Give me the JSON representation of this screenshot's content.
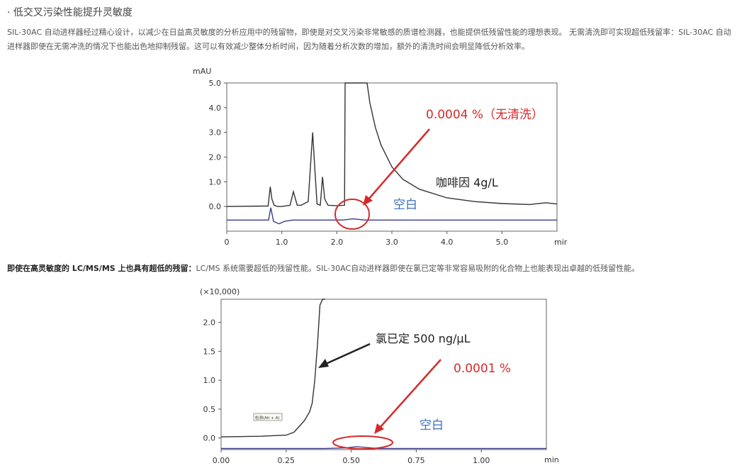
{
  "section": {
    "heading": "· 低交叉污染性能提升灵敏度",
    "paragraph1": "SIL-30AC 自动进样器经过精心设计，以减少在日益高灵敏度的分析应用中的残留物，即使是对交叉污染非常敏感的质谱检测器，也能提供低残留性能的理想表现。 无需清洗即可实现超低残留率：SIL-30AC 自动进样器即使在无需冲洗的情况下也能出色地抑制残留。这可以有效减少整体分析时间，因为随着分析次数的增加，额外的清洗时间会明显降低分析效率。",
    "paragraph2_bold": "即使在高灵敏度的 LC/MS/MS 上也具有超低的残留：",
    "paragraph2_rest": "LC/MS 系统需要超低的残留性能。SIL-30AC自动进样器即使在氯已定等非常容易吸附的化合物上也能表现出卓越的低残留性能。"
  },
  "chart_data": [
    {
      "type": "line",
      "ylabel": "mAU",
      "xlabel": "min",
      "xlim": [
        0,
        6.0
      ],
      "ylim": [
        -1.0,
        5.0
      ],
      "xticks": [
        "0",
        "1.0",
        "2.0",
        "3.0",
        "4.0",
        "5.0"
      ],
      "yticks": [
        "0.0",
        "1.0",
        "2.0",
        "3.0",
        "4.0",
        "5.0"
      ],
      "series": [
        {
          "name": "咖啡因 4g/L",
          "color": "#333333",
          "x": [
            0,
            0.75,
            0.79,
            0.82,
            0.86,
            0.92,
            1.0,
            1.15,
            1.21,
            1.28,
            1.35,
            1.48,
            1.56,
            1.6,
            1.64,
            1.7,
            1.74,
            1.78,
            1.84,
            2.0,
            2.14,
            2.15,
            2.18,
            2.55,
            2.6,
            2.7,
            2.8,
            3.0,
            3.2,
            3.5,
            4.0,
            4.5,
            5.0,
            5.5,
            5.8,
            6.0
          ],
          "y": [
            0.0,
            0.02,
            0.8,
            0.3,
            0.05,
            0.0,
            0.0,
            0.05,
            0.6,
            0.05,
            0.05,
            0.2,
            3.0,
            1.5,
            0.1,
            0.05,
            1.2,
            0.3,
            0.05,
            0.03,
            0.05,
            5.2,
            5.2,
            5.2,
            4.2,
            3.2,
            2.5,
            1.6,
            1.1,
            0.7,
            0.35,
            0.2,
            0.12,
            0.08,
            0.15,
            0.1
          ]
        },
        {
          "name": "空白",
          "color": "#3a3a8c",
          "x": [
            0,
            0.76,
            0.8,
            0.85,
            0.95,
            1.05,
            1.2,
            2.1,
            2.3,
            2.5,
            2.7,
            6.0
          ],
          "y": [
            -0.55,
            -0.55,
            -0.05,
            -0.6,
            -0.7,
            -0.6,
            -0.55,
            -0.55,
            -0.5,
            -0.55,
            -0.55,
            -0.55
          ]
        }
      ],
      "annotations": [
        "0.0004 %（无清洗）",
        "咖啡因 4g/L",
        "空白"
      ]
    },
    {
      "type": "line",
      "ylabel": "(×10,000)",
      "xlabel": "min",
      "xlim": [
        0,
        1.25
      ],
      "ylim": [
        -0.2,
        2.4
      ],
      "xticks": [
        "0.00",
        "0.25",
        "0.50",
        "0.75",
        "1.00"
      ],
      "yticks": [
        "0.0",
        "0.5",
        "1.0",
        "1.5",
        "2.0"
      ],
      "series": [
        {
          "name": "氯已定 500 ng/μL",
          "color": "#333333",
          "x": [
            0,
            0.15,
            0.25,
            0.28,
            0.3,
            0.32,
            0.34,
            0.35,
            0.36,
            0.37,
            0.38,
            0.39,
            0.4
          ],
          "y": [
            0.02,
            0.03,
            0.05,
            0.1,
            0.2,
            0.3,
            0.45,
            0.6,
            1.0,
            1.6,
            2.3,
            2.5,
            2.5
          ]
        },
        {
          "name": "空白",
          "color": "#3a3a8c",
          "x": [
            0,
            0.4,
            0.48,
            0.52,
            0.55,
            0.6,
            0.7,
            1.25
          ],
          "y": [
            -0.18,
            -0.18,
            -0.17,
            -0.15,
            -0.16,
            -0.18,
            -0.18,
            -0.18
          ]
        }
      ],
      "annotations": [
        "氯已定 500 ng/μL",
        "0.0001 %",
        "空白"
      ],
      "legend_box": "检测(Alt + A)"
    }
  ]
}
